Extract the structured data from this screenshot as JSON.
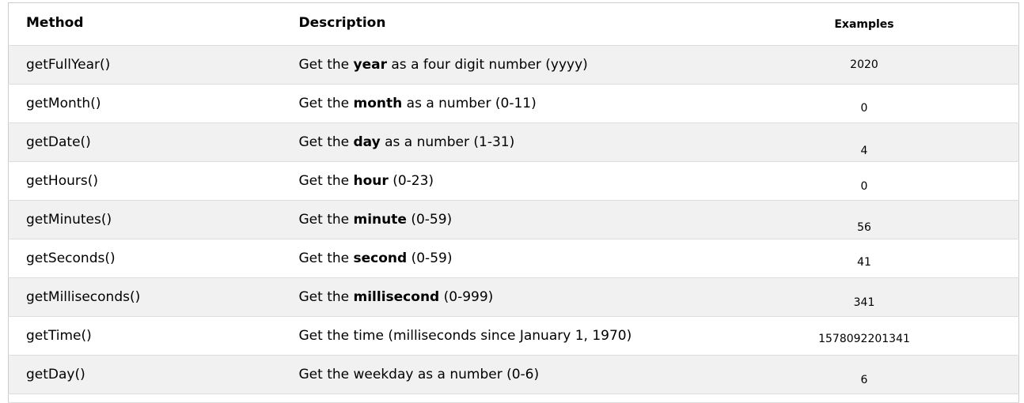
{
  "table": {
    "headers": {
      "method": "Method",
      "description": "Description",
      "examples": "Examples"
    },
    "rows": [
      {
        "method": "getFullYear()",
        "pre": "Get the ",
        "bold": "year",
        "post": " as a four digit number (yyyy)",
        "example": "2020"
      },
      {
        "method": "getMonth()",
        "pre": "Get the ",
        "bold": "month",
        "post": " as a number (0-11)",
        "example": "0"
      },
      {
        "method": "getDate()",
        "pre": "Get the ",
        "bold": "day",
        "post": " as a number (1-31)",
        "example": "4"
      },
      {
        "method": "getHours()",
        "pre": "Get the ",
        "bold": "hour",
        "post": " (0-23)",
        "example": "0"
      },
      {
        "method": "getMinutes()",
        "pre": "Get the ",
        "bold": "minute",
        "post": " (0-59)",
        "example": "56"
      },
      {
        "method": "getSeconds()",
        "pre": "Get the ",
        "bold": "second",
        "post": " (0-59)",
        "example": "41"
      },
      {
        "method": "getMilliseconds()",
        "pre": "Get the ",
        "bold": "millisecond",
        "post": " (0-999)",
        "example": "341"
      },
      {
        "method": "getTime()",
        "pre": "Get the time (milliseconds since January 1, 1970)",
        "bold": "",
        "post": "",
        "example": "1578092201341"
      },
      {
        "method": "getDay()",
        "pre": "Get the weekday as a number (0-6)",
        "bold": "",
        "post": "",
        "example": "6"
      }
    ]
  }
}
